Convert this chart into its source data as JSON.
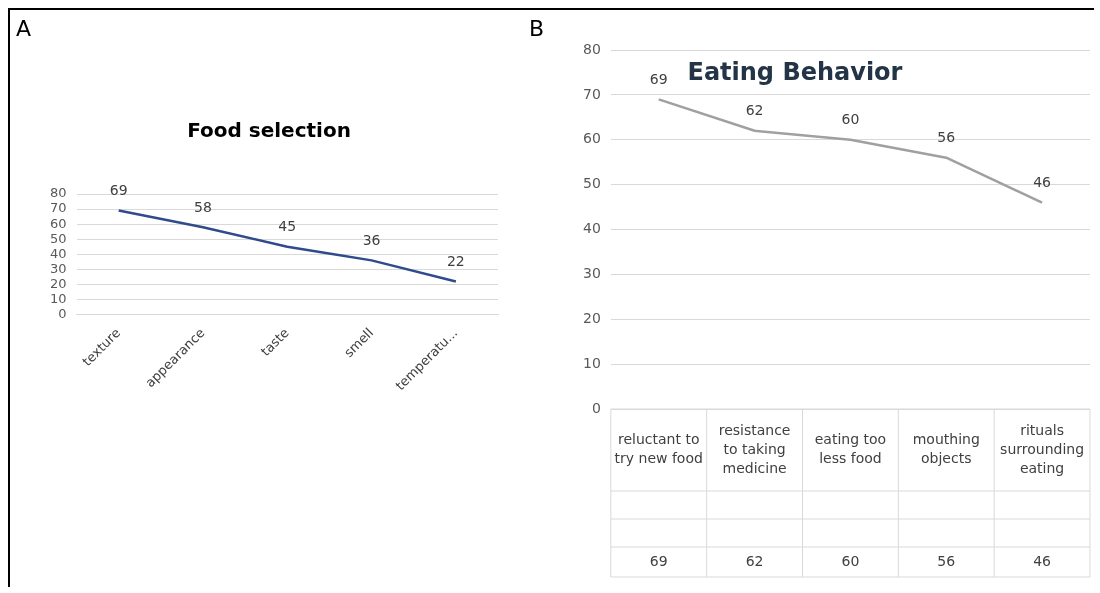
{
  "chart_data": [
    {
      "type": "line",
      "title": "Food selection",
      "annotations": [
        "A"
      ],
      "categories": [
        "texture",
        "appearance",
        "taste",
        "smell",
        "temperatu..."
      ],
      "values": [
        69,
        58,
        45,
        36,
        22
      ],
      "color": "#2f4b8c",
      "ylim": [
        0,
        80
      ],
      "yticks": [
        0,
        10,
        20,
        30,
        40,
        50,
        60,
        70,
        80
      ],
      "grid": "y",
      "data_labels": true,
      "marker": "none"
    },
    {
      "type": "line",
      "title": "Eating Behavior",
      "annotations": [
        "B",
        "69",
        "62",
        "60",
        "56",
        "46"
      ],
      "categories": [
        "reluctant to try new food",
        "resistance to taking medicine",
        "eating too less food",
        "mouthing objects",
        "rituals surrounding eating"
      ],
      "values": [
        69,
        62,
        60,
        56,
        46
      ],
      "value_labels": [
        "69",
        "62",
        "60",
        "56",
        "46"
      ],
      "color": "#a0a0a0",
      "ylim": [
        0,
        80
      ],
      "yticks": [
        0,
        10,
        20,
        30,
        40,
        50,
        60,
        70,
        80
      ],
      "grid": "y",
      "marker": "none"
    }
  ]
}
